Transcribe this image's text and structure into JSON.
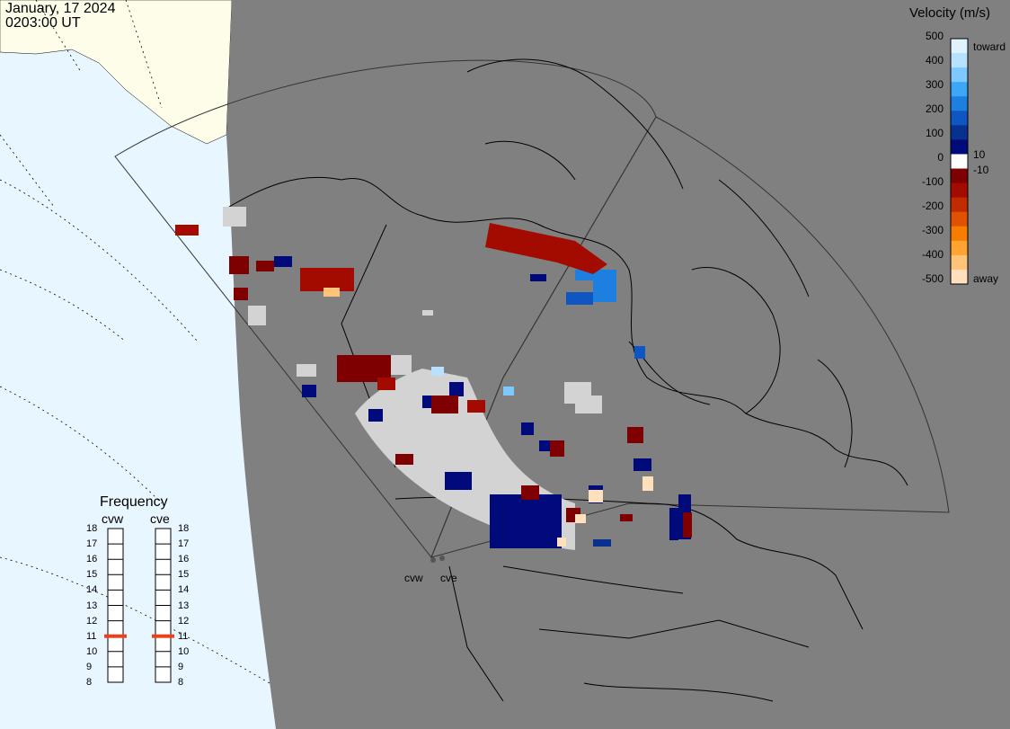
{
  "header": {
    "date": "January, 17 2024",
    "time": "0203:00 UT"
  },
  "colors": {
    "ocean": "#e8f6ff",
    "land_polar": "#fdfdea",
    "map_background": "#808080",
    "boundaries": "#000000",
    "ground_scatter": "#d3d3d3",
    "frequency_marker": "#e8421c"
  },
  "velocity_legend": {
    "title": "Velocity (m/s)",
    "ticks": [
      "500",
      "400",
      "300",
      "200",
      "100",
      "0",
      "-100",
      "-200",
      "-300",
      "-400",
      "-500"
    ],
    "small_ticks": [
      "10",
      "-10"
    ],
    "toward_label": "toward",
    "away_label": "away",
    "scale_colors": [
      "#dff3ff",
      "#b6e2ff",
      "#7dc8ff",
      "#3ea7f5",
      "#1d7fe0",
      "#0f56c2",
      "#07308f",
      "#000a7a",
      "#ffffff",
      "#7e0000",
      "#a30b00",
      "#c22a00",
      "#e05200",
      "#f77d00",
      "#ffa430",
      "#ffc37a",
      "#ffe0bd"
    ]
  },
  "frequency_panel": {
    "title": "Frequency",
    "radars": [
      {
        "name": "cvw",
        "frequency_mhz": 11
      },
      {
        "name": "cve",
        "frequency_mhz": 11
      }
    ],
    "ticks": [
      "18",
      "17",
      "16",
      "15",
      "14",
      "13",
      "12",
      "11",
      "10",
      "9",
      "8"
    ]
  },
  "site_labels": [
    "cvw",
    "cve"
  ]
}
